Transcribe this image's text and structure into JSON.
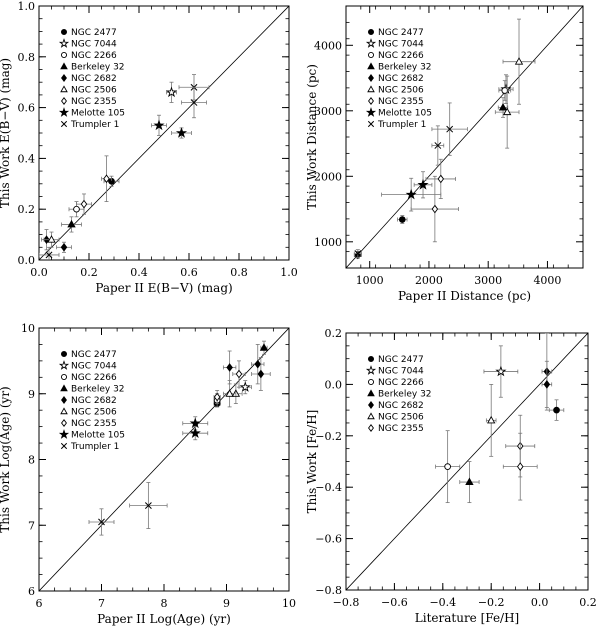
{
  "chart_data": [
    {
      "id": "ebv",
      "type": "scatter",
      "xlabel": "Paper II E(B−V) (mag)",
      "ylabel": "This Work E(B−V) (mag)",
      "xlim": [
        0.0,
        1.0
      ],
      "ylim": [
        0.0,
        1.0
      ],
      "xticks": [
        0.0,
        0.2,
        0.4,
        0.6,
        0.8,
        1.0
      ],
      "yticks": [
        0.0,
        0.2,
        0.4,
        0.6,
        0.8,
        1.0
      ],
      "xtick_labels": [
        "0.0",
        "0.2",
        "0.4",
        "0.6",
        "0.8",
        "1.0"
      ],
      "ytick_labels": [
        "0.0",
        "0.2",
        "0.4",
        "0.6",
        "0.8",
        "1.0"
      ],
      "diagonal": true,
      "legend": [
        "NGC 2477",
        "NGC 7044",
        "NGC 2266",
        "Berkeley 32",
        "NGC 2682",
        "NGC 2506",
        "NGC 2355",
        "Melotte 105",
        "Trumpler 1"
      ],
      "series": [
        {
          "name": "NGC 2477",
          "marker": "filled-circle",
          "points": [
            {
              "x": 0.29,
              "y": 0.31,
              "xerr": 0.03,
              "yerr": 0.02
            }
          ]
        },
        {
          "name": "NGC 7044",
          "marker": "open-star",
          "points": [
            {
              "x": 0.53,
              "y": 0.66,
              "xerr": 0.02,
              "yerr": 0.04
            }
          ]
        },
        {
          "name": "NGC 2266",
          "marker": "open-circle",
          "points": [
            {
              "x": 0.15,
              "y": 0.2,
              "xerr": 0.03,
              "yerr": 0.03
            }
          ]
        },
        {
          "name": "Berkeley 32",
          "marker": "filled-triangle",
          "points": [
            {
              "x": 0.13,
              "y": 0.14,
              "xerr": 0.04,
              "yerr": 0.03
            }
          ]
        },
        {
          "name": "NGC 2682",
          "marker": "filled-diamond",
          "points": [
            {
              "x": 0.03,
              "y": 0.08,
              "xerr": 0.02,
              "yerr": 0.04
            },
            {
              "x": 0.1,
              "y": 0.05,
              "xerr": 0.03,
              "yerr": 0.02
            }
          ]
        },
        {
          "name": "NGC 2506",
          "marker": "open-triangle",
          "points": [
            {
              "x": 0.05,
              "y": 0.08,
              "xerr": 0.03,
              "yerr": 0.03
            }
          ]
        },
        {
          "name": "NGC 2355",
          "marker": "open-diamond",
          "points": [
            {
              "x": 0.18,
              "y": 0.22,
              "xerr": 0.03,
              "yerr": 0.04
            },
            {
              "x": 0.27,
              "y": 0.32,
              "xerr": 0.02,
              "yerr": 0.09
            }
          ]
        },
        {
          "name": "Melotte 105",
          "marker": "filled-star",
          "points": [
            {
              "x": 0.48,
              "y": 0.53,
              "xerr": 0.03,
              "yerr": 0.04
            },
            {
              "x": 0.57,
              "y": 0.5,
              "xerr": 0.04,
              "yerr": 0.02
            }
          ]
        },
        {
          "name": "Trumpler 1",
          "marker": "cross",
          "points": [
            {
              "x": 0.04,
              "y": 0.02,
              "xerr": 0.04,
              "yerr": 0.03
            },
            {
              "x": 0.62,
              "y": 0.68,
              "xerr": 0.06,
              "yerr": 0.05
            },
            {
              "x": 0.62,
              "y": 0.62,
              "xerr": 0.05,
              "yerr": 0.06
            }
          ]
        }
      ]
    },
    {
      "id": "distance",
      "type": "scatter",
      "xlabel": "Paper II Distance (pc)",
      "ylabel": "This Work Distance (pc)",
      "xlim": [
        600,
        4600
      ],
      "ylim": [
        600,
        4600
      ],
      "xticks": [
        1000,
        2000,
        3000,
        4000
      ],
      "yticks": [
        1000,
        2000,
        3000,
        4000
      ],
      "xtick_labels": [
        "1000",
        "2000",
        "3000",
        "4000"
      ],
      "ytick_labels": [
        "1000",
        "2000",
        "3000",
        "4000"
      ],
      "diagonal": true,
      "legend": [
        "NGC 2477",
        "NGC 7044",
        "NGC 2266",
        "Berkeley 32",
        "NGC 2682",
        "NGC 2506",
        "NGC 2355",
        "Melotte 105",
        "Trumpler 1"
      ],
      "series": [
        {
          "name": "NGC 2477",
          "marker": "filled-circle",
          "points": [
            {
              "x": 1550,
              "y": 1340,
              "xerr": 80,
              "yerr": 60
            }
          ]
        },
        {
          "name": "NGC 7044",
          "marker": "open-star",
          "points": [
            {
              "x": 3300,
              "y": 3330,
              "xerr": 120,
              "yerr": 220
            }
          ]
        },
        {
          "name": "NGC 2266",
          "marker": "open-circle",
          "points": [
            {
              "x": 3280,
              "y": 3310,
              "xerr": 100,
              "yerr": 150
            }
          ]
        },
        {
          "name": "Berkeley 32",
          "marker": "filled-triangle",
          "points": [
            {
              "x": 3250,
              "y": 3050,
              "xerr": 80,
              "yerr": 150
            }
          ]
        },
        {
          "name": "NGC 2682",
          "marker": "filled-diamond",
          "points": [
            {
              "x": 800,
              "y": 800,
              "xerr": 60,
              "yerr": 50
            }
          ]
        },
        {
          "name": "NGC 2506",
          "marker": "open-triangle",
          "points": [
            {
              "x": 3520,
              "y": 3750,
              "xerr": 270,
              "yerr": 650
            },
            {
              "x": 3320,
              "y": 2980,
              "xerr": 200,
              "yerr": 550
            }
          ]
        },
        {
          "name": "NGC 2355",
          "marker": "open-diamond",
          "points": [
            {
              "x": 2200,
              "y": 1960,
              "xerr": 250,
              "yerr": 300
            },
            {
              "x": 2100,
              "y": 1500,
              "xerr": 400,
              "yerr": 500
            }
          ]
        },
        {
          "name": "Melotte 105",
          "marker": "filled-star",
          "points": [
            {
              "x": 1700,
              "y": 1720,
              "xerr": 500,
              "yerr": 250
            },
            {
              "x": 1900,
              "y": 1870,
              "xerr": 150,
              "yerr": 200
            }
          ]
        },
        {
          "name": "Trumpler 1",
          "marker": "cross",
          "points": [
            {
              "x": 800,
              "y": 820,
              "xerr": 60,
              "yerr": 60
            },
            {
              "x": 2150,
              "y": 2470,
              "xerr": 100,
              "yerr": 300
            },
            {
              "x": 2350,
              "y": 2720,
              "xerr": 300,
              "yerr": 400
            }
          ]
        }
      ]
    },
    {
      "id": "age",
      "type": "scatter",
      "xlabel": "Paper II Log(Age) (yr)",
      "ylabel": "This Work Log(Age) (yr)",
      "xlim": [
        6,
        10
      ],
      "ylim": [
        6,
        10
      ],
      "xticks": [
        6,
        7,
        8,
        9,
        10
      ],
      "yticks": [
        6,
        7,
        8,
        9,
        10
      ],
      "xtick_labels": [
        "6",
        "7",
        "8",
        "9",
        "10"
      ],
      "ytick_labels": [
        "6",
        "7",
        "8",
        "9",
        "10"
      ],
      "diagonal": true,
      "legend": [
        "NGC 2477",
        "NGC 7044",
        "NGC 2266",
        "Berkeley 32",
        "NGC 2682",
        "NGC 2506",
        "NGC 2355",
        "Melotte 105",
        "Trumpler 1"
      ],
      "series": [
        {
          "name": "NGC 2477",
          "marker": "filled-circle",
          "points": [
            {
              "x": 8.85,
              "y": 8.85,
              "xerr": 0.05,
              "yerr": 0.05
            }
          ]
        },
        {
          "name": "NGC 7044",
          "marker": "open-star",
          "points": [
            {
              "x": 9.3,
              "y": 9.1,
              "xerr": 0.1,
              "yerr": 0.1
            }
          ]
        },
        {
          "name": "NGC 2266",
          "marker": "open-circle",
          "points": [
            {
              "x": 8.85,
              "y": 8.9,
              "xerr": 0.05,
              "yerr": 0.1
            }
          ]
        },
        {
          "name": "Berkeley 32",
          "marker": "filled-triangle",
          "points": [
            {
              "x": 9.6,
              "y": 9.7,
              "xerr": 0.05,
              "yerr": 0.1
            }
          ]
        },
        {
          "name": "NGC 2682",
          "marker": "filled-diamond",
          "points": [
            {
              "x": 9.05,
              "y": 9.4,
              "xerr": 0.1,
              "yerr": 0.25
            },
            {
              "x": 9.5,
              "y": 9.45,
              "xerr": 0.1,
              "yerr": 0.3
            },
            {
              "x": 9.55,
              "y": 9.3,
              "xerr": 0.15,
              "yerr": 0.25
            }
          ]
        },
        {
          "name": "NGC 2506",
          "marker": "open-triangle",
          "points": [
            {
              "x": 9.15,
              "y": 9.0,
              "xerr": 0.1,
              "yerr": 0.15
            },
            {
              "x": 9.05,
              "y": 9.0,
              "xerr": 0.1,
              "yerr": 0.2
            }
          ]
        },
        {
          "name": "NGC 2355",
          "marker": "open-diamond",
          "points": [
            {
              "x": 8.85,
              "y": 8.95,
              "xerr": 0.05,
              "yerr": 0.1
            },
            {
              "x": 9.2,
              "y": 9.3,
              "xerr": 0.1,
              "yerr": 0.2
            }
          ]
        },
        {
          "name": "Melotte 105",
          "marker": "filled-star",
          "points": [
            {
              "x": 8.5,
              "y": 8.55,
              "xerr": 0.2,
              "yerr": 0.1
            },
            {
              "x": 8.5,
              "y": 8.4,
              "xerr": 0.2,
              "yerr": 0.1
            }
          ]
        },
        {
          "name": "Trumpler 1",
          "marker": "cross",
          "points": [
            {
              "x": 7.0,
              "y": 7.05,
              "xerr": 0.2,
              "yerr": 0.2
            },
            {
              "x": 7.75,
              "y": 7.3,
              "xerr": 0.3,
              "yerr": 0.35
            }
          ]
        }
      ]
    },
    {
      "id": "feh",
      "type": "scatter",
      "xlabel": "Literature [Fe/H]",
      "ylabel": "This Work [Fe/H]",
      "xlim": [
        -0.8,
        0.2
      ],
      "ylim": [
        -0.8,
        0.2
      ],
      "xticks": [
        -0.8,
        -0.6,
        -0.4,
        -0.2,
        0.0,
        0.2
      ],
      "yticks": [
        -0.8,
        -0.6,
        -0.4,
        -0.2,
        0.0,
        0.2
      ],
      "xtick_labels": [
        "−0.8",
        "−0.6",
        "−0.4",
        "−0.2",
        "0.0",
        "0.2"
      ],
      "ytick_labels": [
        "−0.8",
        "−0.6",
        "−0.4",
        "−0.2",
        "0.0",
        "0.2"
      ],
      "diagonal": true,
      "legend": [
        "NGC 2477",
        "NGC 7044",
        "NGC 2266",
        "Berkeley 32",
        "NGC 2682",
        "NGC 2506",
        "NGC 2355"
      ],
      "series": [
        {
          "name": "NGC 2477",
          "marker": "filled-circle",
          "points": [
            {
              "x": 0.07,
              "y": -0.1,
              "xerr": 0.03,
              "yerr": 0.04
            }
          ]
        },
        {
          "name": "NGC 7044",
          "marker": "open-star",
          "points": [
            {
              "x": -0.16,
              "y": 0.05,
              "xerr": 0.07,
              "yerr": 0.1
            }
          ]
        },
        {
          "name": "NGC 2266",
          "marker": "open-circle",
          "points": [
            {
              "x": -0.38,
              "y": -0.32,
              "xerr": 0.05,
              "yerr": 0.14
            }
          ]
        },
        {
          "name": "Berkeley 32",
          "marker": "filled-triangle",
          "points": [
            {
              "x": -0.29,
              "y": -0.38,
              "xerr": 0.04,
              "yerr": 0.08
            }
          ]
        },
        {
          "name": "NGC 2682",
          "marker": "filled-diamond",
          "points": [
            {
              "x": 0.03,
              "y": 0.05,
              "xerr": 0.02,
              "yerr": 0.15
            },
            {
              "x": 0.03,
              "y": 0.0,
              "xerr": 0.02,
              "yerr": 0.09
            }
          ]
        },
        {
          "name": "NGC 2506",
          "marker": "open-triangle",
          "points": [
            {
              "x": -0.2,
              "y": -0.14,
              "xerr": 0.02,
              "yerr": 0.14
            }
          ]
        },
        {
          "name": "NGC 2355",
          "marker": "open-diamond",
          "points": [
            {
              "x": -0.08,
              "y": -0.24,
              "xerr": 0.06,
              "yerr": 0.12
            },
            {
              "x": -0.08,
              "y": -0.32,
              "xerr": 0.07,
              "yerr": 0.13
            }
          ]
        }
      ]
    }
  ]
}
